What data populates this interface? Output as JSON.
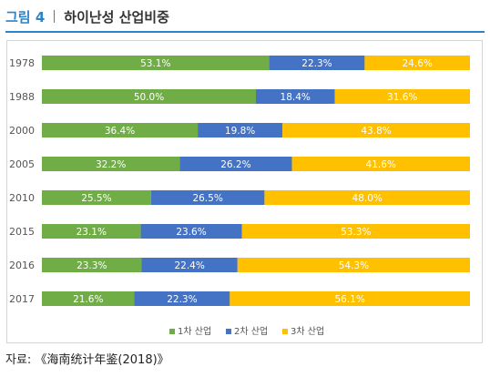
{
  "figure": {
    "label": "그림 4",
    "title": "하이난성 산업비중"
  },
  "source": "자료: 《海南统计年鉴(2018)》",
  "chart_data": {
    "type": "bar",
    "orientation": "horizontal",
    "stacked": "percent",
    "categories": [
      "1978",
      "1988",
      "2000",
      "2005",
      "2010",
      "2015",
      "2016",
      "2017"
    ],
    "series": [
      {
        "name": "1차 산업",
        "color": "#70ad47",
        "values": [
          53.1,
          50.0,
          36.4,
          32.2,
          25.5,
          23.1,
          23.3,
          21.6
        ],
        "labels": [
          "53.1%",
          "50.0%",
          "36.4%",
          "32.2%",
          "25.5%",
          "23.1%",
          "23.3%",
          "21.6%"
        ]
      },
      {
        "name": "2차 산업",
        "color": "#4472c4",
        "values": [
          22.3,
          18.4,
          19.8,
          26.2,
          26.5,
          23.6,
          22.4,
          22.3
        ],
        "labels": [
          "22.3%",
          "18.4%",
          "19.8%",
          "26.2%",
          "26.5%",
          "23.6%",
          "22.4%",
          "22.3%"
        ]
      },
      {
        "name": "3차 산업",
        "color": "#ffc000",
        "values": [
          24.6,
          31.6,
          43.8,
          41.6,
          48.0,
          53.3,
          54.3,
          56.1
        ],
        "labels": [
          "24.6%",
          "31.6%",
          "43.8%",
          "41.6%",
          "48.0%",
          "53.3%",
          "54.3%",
          "56.1%"
        ]
      }
    ],
    "xlim": [
      0,
      100
    ],
    "legend": "bottom-center",
    "grid": false
  }
}
